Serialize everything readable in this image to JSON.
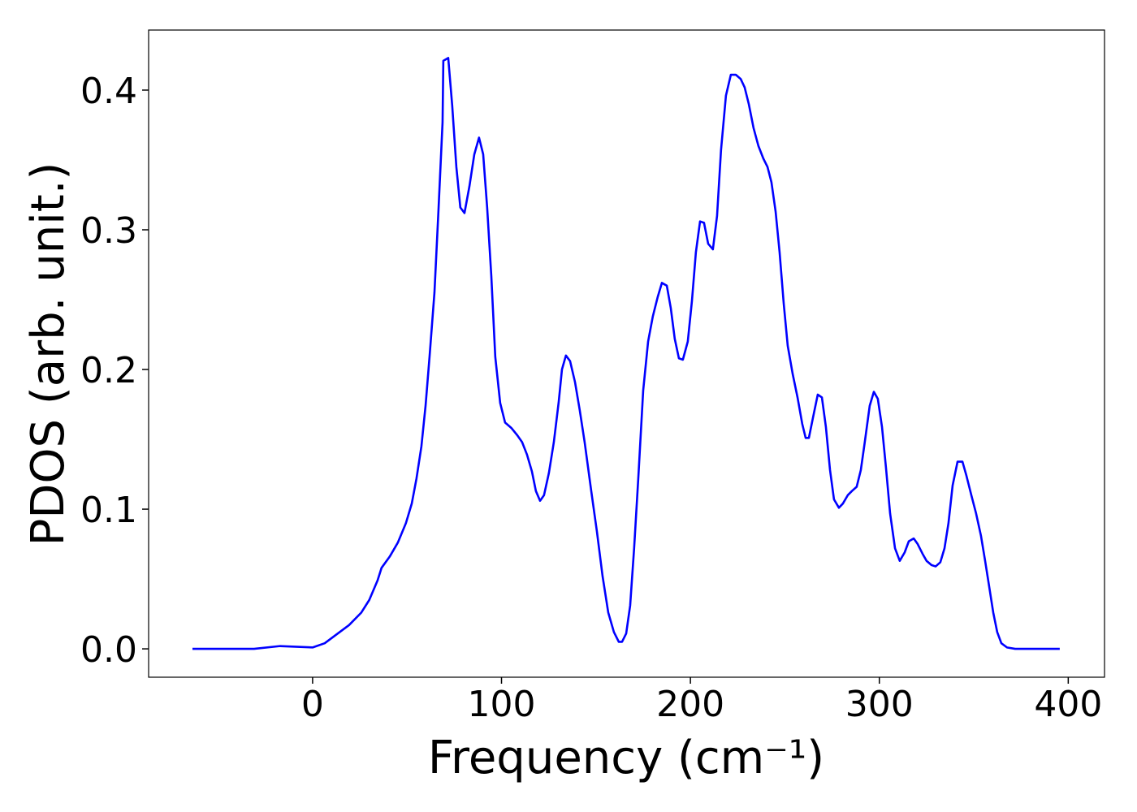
{
  "chart_data": {
    "type": "line",
    "xlabel": "Frequency (cm⁻¹)",
    "ylabel": "PDOS (arb. unit.)",
    "color": "#0000ff",
    "x": [
      -63.6,
      -31,
      -17.2,
      0,
      6.4,
      19.3,
      25.8,
      30,
      34.4,
      36.5,
      40.8,
      45.1,
      49.4,
      52.5,
      55,
      57.6,
      59.8,
      61.9,
      64.5,
      66.6,
      68.8,
      69.2,
      71.8,
      73.9,
      76.1,
      78.2,
      80.4,
      83,
      85.6,
      88.1,
      90.3,
      92.4,
      94.6,
      96.7,
      99.3,
      101.9,
      105.3,
      108.3,
      110.9,
      113.5,
      116.1,
      118.2,
      120.4,
      122.5,
      125.1,
      127.7,
      130.3,
      132,
      134.1,
      136.3,
      138.9,
      141.4,
      144,
      147.5,
      150.5,
      153.5,
      156.5,
      159.5,
      162.1,
      163.8,
      166,
      168.1,
      170.2,
      172.4,
      175,
      177.6,
      180.1,
      182.7,
      184.9,
      187.5,
      189.6,
      191.7,
      193.9,
      196,
      198.6,
      200.8,
      202.9,
      205.1,
      207.2,
      209.4,
      211.9,
      214.1,
      216.2,
      218.8,
      221.4,
      224,
      226.6,
      228.7,
      230.9,
      233.4,
      236,
      238.6,
      240.8,
      242.9,
      245.1,
      247.2,
      249.4,
      251.5,
      254.1,
      256.7,
      259.2,
      261,
      262.7,
      264.8,
      267.4,
      269.6,
      271.7,
      273.9,
      276,
      278.6,
      280.7,
      283.3,
      285.5,
      288,
      290.2,
      292.3,
      294.9,
      297.1,
      299.2,
      301.4,
      303.5,
      305.7,
      308.3,
      310.8,
      313.4,
      315.6,
      318.2,
      320.3,
      322.9,
      325,
      327.6,
      329.8,
      332.3,
      334.5,
      336.6,
      338.8,
      341.4,
      344,
      346.1,
      348.7,
      351.2,
      353.8,
      356,
      358.1,
      360.3,
      362.4,
      364.6,
      367.6,
      371.9,
      395.5
    ],
    "values": [
      0,
      0,
      0.002,
      0.001,
      0.004,
      0.017,
      0.026,
      0.035,
      0.049,
      0.058,
      0.066,
      0.076,
      0.09,
      0.104,
      0.122,
      0.145,
      0.174,
      0.209,
      0.255,
      0.313,
      0.377,
      0.421,
      0.423,
      0.389,
      0.345,
      0.316,
      0.312,
      0.331,
      0.354,
      0.366,
      0.354,
      0.316,
      0.267,
      0.209,
      0.176,
      0.162,
      0.158,
      0.153,
      0.148,
      0.139,
      0.127,
      0.113,
      0.106,
      0.11,
      0.126,
      0.148,
      0.177,
      0.2,
      0.21,
      0.206,
      0.191,
      0.171,
      0.148,
      0.113,
      0.084,
      0.052,
      0.026,
      0.012,
      0.005,
      0.005,
      0.011,
      0.031,
      0.072,
      0.122,
      0.185,
      0.22,
      0.238,
      0.252,
      0.262,
      0.26,
      0.244,
      0.222,
      0.208,
      0.207,
      0.22,
      0.249,
      0.284,
      0.306,
      0.305,
      0.29,
      0.286,
      0.31,
      0.357,
      0.396,
      0.411,
      0.411,
      0.408,
      0.402,
      0.39,
      0.373,
      0.36,
      0.351,
      0.345,
      0.334,
      0.313,
      0.284,
      0.247,
      0.217,
      0.197,
      0.18,
      0.161,
      0.151,
      0.151,
      0.165,
      0.182,
      0.18,
      0.159,
      0.128,
      0.107,
      0.101,
      0.104,
      0.11,
      0.113,
      0.116,
      0.128,
      0.148,
      0.174,
      0.184,
      0.179,
      0.159,
      0.13,
      0.097,
      0.072,
      0.063,
      0.069,
      0.077,
      0.079,
      0.075,
      0.068,
      0.063,
      0.06,
      0.059,
      0.062,
      0.072,
      0.09,
      0.117,
      0.134,
      0.134,
      0.124,
      0.11,
      0.097,
      0.081,
      0.063,
      0.045,
      0.026,
      0.012,
      0.004,
      0.001,
      0,
      0
    ],
    "xlim": [
      -86.8,
      419.2
    ],
    "ylim": [
      -0.0203,
      0.443
    ],
    "xticks": [
      0,
      100,
      200,
      300,
      400
    ],
    "yticks": [
      {
        "value": 0,
        "label": "0.0"
      },
      {
        "value": 0.1,
        "label": "0.1"
      },
      {
        "value": 0.2,
        "label": "0.2"
      },
      {
        "value": 0.3,
        "label": "0.3"
      },
      {
        "value": 0.4,
        "label": "0.4"
      }
    ],
    "grid": false
  }
}
